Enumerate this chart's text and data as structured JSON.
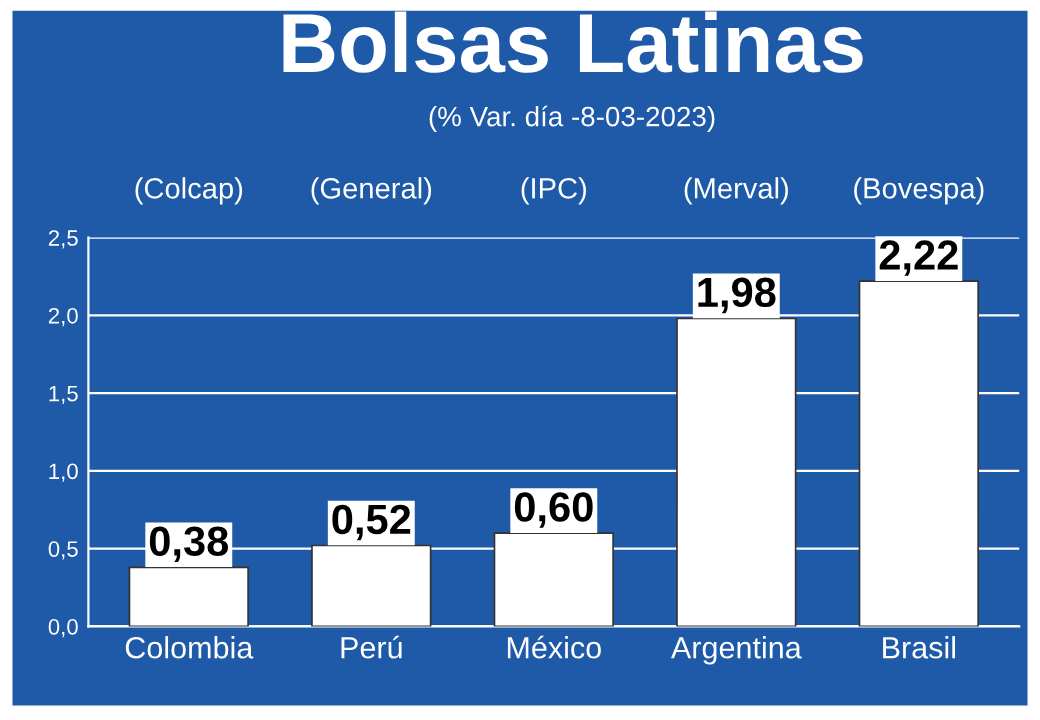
{
  "chart_data": {
    "type": "bar",
    "title": "Bolsas Latinas",
    "subtitle": "(% Var. día -8-03-2023)",
    "categories": [
      "Colombia",
      "Perú",
      "México",
      "Argentina",
      "Brasil"
    ],
    "values": [
      0.38,
      0.52,
      0.6,
      1.98,
      2.22
    ],
    "value_labels": [
      "0,38",
      "0,52",
      "0,60",
      "1,98",
      "2,22"
    ],
    "color": "#ffffff",
    "annotations": [
      "(Colcap)",
      "(General)",
      "(IPC)",
      "(Merval)",
      "(Bovespa)"
    ],
    "ylim": [
      0,
      2.5
    ],
    "yticks": [
      {
        "value": 0,
        "label": "0,0"
      },
      {
        "value": 0.5,
        "label": "0,5"
      },
      {
        "value": 1.0,
        "label": "1,0"
      },
      {
        "value": 1.5,
        "label": "1,5"
      },
      {
        "value": 2.0,
        "label": "2,0"
      },
      {
        "value": 2.5,
        "label": "2,5"
      }
    ],
    "grid": "y",
    "legend": false
  }
}
